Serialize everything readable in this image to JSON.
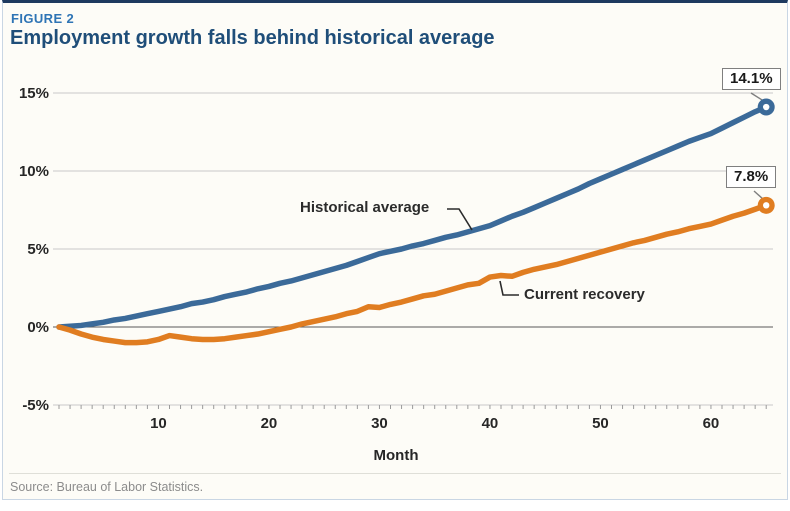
{
  "figure": {
    "label": "FIGURE 2",
    "title": "Employment growth falls behind historical average",
    "source": "Source: Bureau of Labor Statistics."
  },
  "chart_data": {
    "type": "line",
    "title": "Employment growth falls behind historical average",
    "xlabel": "Month",
    "ylabel": "",
    "xlim": [
      1,
      66
    ],
    "ylim": [
      -5,
      15
    ],
    "grid": "horizontal",
    "x_ticks": [
      10,
      20,
      30,
      40,
      50,
      60
    ],
    "y_ticks": [
      "15%",
      "10%",
      "5%",
      "0%",
      "-5%"
    ],
    "x_start": 1,
    "series": [
      {
        "name": "Historical average",
        "color": "#3B6A99",
        "end_label": "14.1%",
        "values": [
          0.0,
          0.05,
          0.1,
          0.2,
          0.3,
          0.45,
          0.55,
          0.7,
          0.85,
          1.0,
          1.15,
          1.3,
          1.5,
          1.6,
          1.75,
          1.95,
          2.1,
          2.25,
          2.45,
          2.6,
          2.8,
          2.95,
          3.15,
          3.35,
          3.55,
          3.75,
          3.95,
          4.2,
          4.45,
          4.7,
          4.85,
          5.0,
          5.2,
          5.35,
          5.55,
          5.75,
          5.9,
          6.1,
          6.3,
          6.5,
          6.8,
          7.1,
          7.35,
          7.65,
          7.95,
          8.25,
          8.55,
          8.85,
          9.2,
          9.5,
          9.8,
          10.1,
          10.4,
          10.7,
          11.0,
          11.3,
          11.6,
          11.9,
          12.15,
          12.4,
          12.75,
          13.1,
          13.45,
          13.8,
          14.1
        ]
      },
      {
        "name": "Current recovery",
        "color": "#E07D21",
        "end_label": "7.8%",
        "values": [
          0.0,
          -0.2,
          -0.45,
          -0.65,
          -0.8,
          -0.9,
          -1.0,
          -1.0,
          -0.95,
          -0.8,
          -0.55,
          -0.65,
          -0.75,
          -0.8,
          -0.8,
          -0.75,
          -0.65,
          -0.55,
          -0.45,
          -0.3,
          -0.15,
          0.0,
          0.2,
          0.35,
          0.5,
          0.65,
          0.85,
          1.0,
          1.3,
          1.25,
          1.45,
          1.6,
          1.8,
          2.0,
          2.1,
          2.3,
          2.5,
          2.7,
          2.8,
          3.2,
          3.3,
          3.25,
          3.5,
          3.7,
          3.85,
          4.0,
          4.2,
          4.4,
          4.6,
          4.8,
          5.0,
          5.2,
          5.4,
          5.55,
          5.75,
          5.95,
          6.1,
          6.3,
          6.45,
          6.6,
          6.85,
          7.1,
          7.3,
          7.55,
          7.8
        ]
      }
    ]
  },
  "colors": {
    "background": "#FDFCF7",
    "border_top": "#1E3A5F",
    "border": "#C9D6E4",
    "figure_label": "#2E74B5",
    "title": "#1F4E79",
    "grid": "#C9C9C9",
    "zero_line": "#595959",
    "tick": "#9A9A9A",
    "axis_text": "#262626",
    "connector": "#2B2B2B",
    "callout_border": "#7F7F7F",
    "source_text": "#8C8C8C",
    "historical_line": "#3B6A99",
    "current_line": "#E07D21"
  }
}
